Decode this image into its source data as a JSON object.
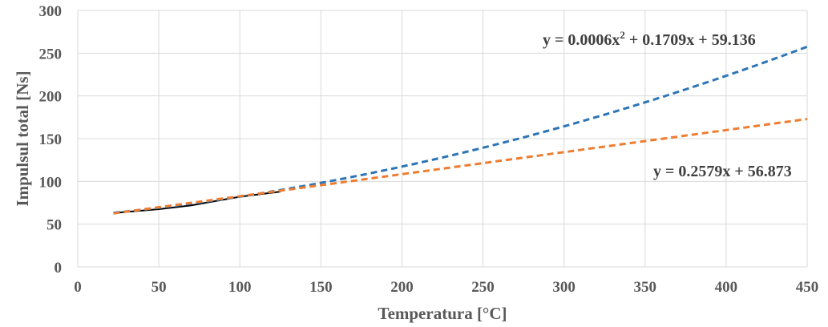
{
  "chart_data": {
    "type": "line",
    "xlabel": "Temperatura [°C]",
    "ylabel": "Impulsul total [Ns]",
    "xlim": [
      0,
      450
    ],
    "ylim": [
      0,
      300
    ],
    "x_ticks": [
      0,
      50,
      100,
      150,
      200,
      250,
      300,
      350,
      400,
      450
    ],
    "y_ticks": [
      0,
      50,
      100,
      150,
      200,
      250,
      300
    ],
    "grid": true,
    "series": [
      {
        "style": "solid",
        "color": "#000000",
        "x": [
          22,
          50,
          70,
          100,
          125
        ],
        "y": [
          63,
          67.5,
          72,
          82,
          88
        ]
      },
      {
        "style": "dashed",
        "color": "#2E75B6",
        "trendline": "polynomial",
        "coefficients": [
          0.0006,
          0.1709,
          59.136
        ],
        "x_range": [
          22,
          450
        ]
      },
      {
        "style": "dashed",
        "color": "#ED7D31",
        "trendline": "linear",
        "coefficients": [
          0.2579,
          56.873
        ],
        "x_range": [
          22,
          450
        ]
      }
    ],
    "annotations": {
      "poly_prefix": "y = 0.0006x",
      "poly_exp": "2",
      "poly_suffix": " + 0.1709x + 59.136",
      "linear": "y = 0.2579x + 56.873"
    }
  }
}
